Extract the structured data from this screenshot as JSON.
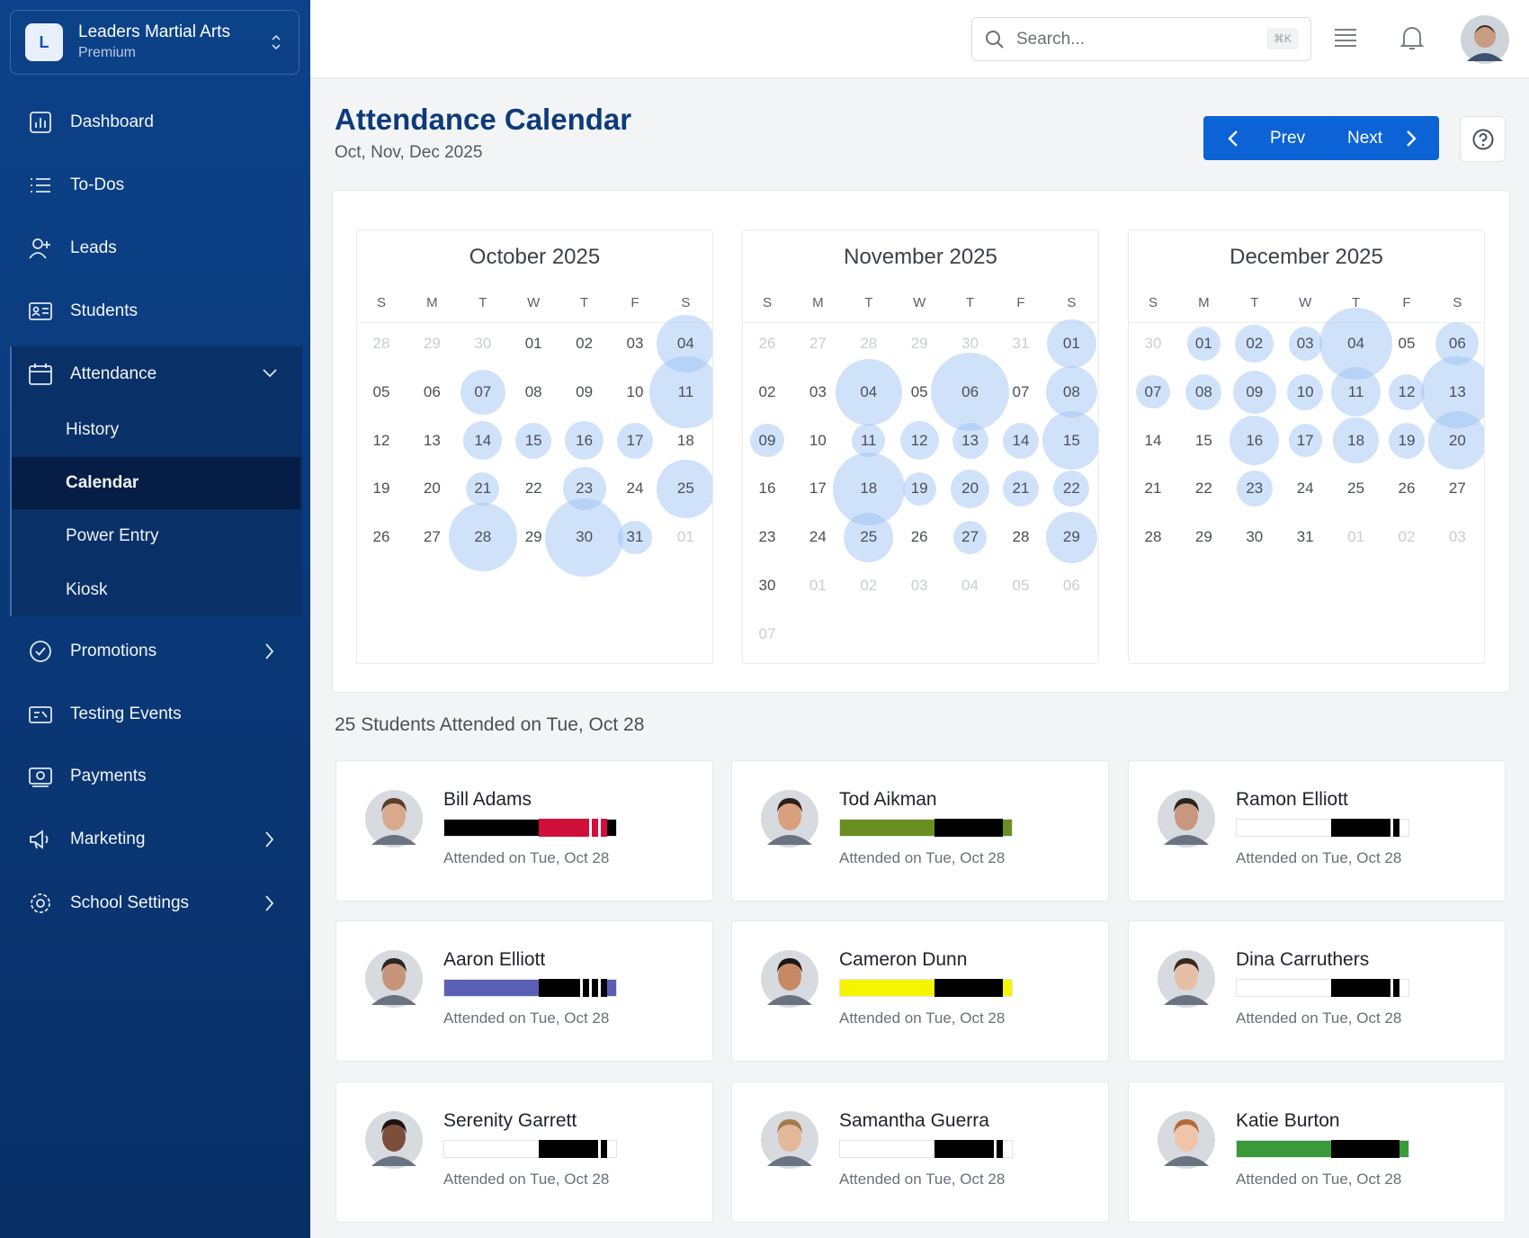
{
  "sidebar": {
    "org": {
      "initial": "L",
      "name": "Leaders Martial Arts",
      "plan": "Premium"
    },
    "nav": [
      "Dashboard",
      "To-Dos",
      "Leads",
      "Students",
      "Attendance",
      "Promotions",
      "Testing Events",
      "Payments",
      "Marketing",
      "School Settings"
    ],
    "subnav": [
      "History",
      "Calendar",
      "Power Entry",
      "Kiosk"
    ]
  },
  "header": {
    "search": "Search...",
    "shortcut": "⌘K"
  },
  "page": {
    "title": "Attendance Calendar",
    "subtitle": "Oct, Nov, Dec 2025",
    "prev": "Prev",
    "next": "Next"
  },
  "calendar": {
    "weekdays": [
      "S",
      "M",
      "T",
      "W",
      "T",
      "F",
      "S"
    ],
    "months": [
      {
        "title": "October 2025",
        "days": [
          "28",
          "29",
          "30",
          "01",
          "02",
          "03",
          "04",
          "05",
          "06",
          "07",
          "08",
          "09",
          "10",
          "11",
          "12",
          "13",
          "14",
          "15",
          "16",
          "17",
          "18",
          "19",
          "20",
          "21",
          "22",
          "23",
          "24",
          "25",
          "26",
          "27",
          "28",
          "29",
          "30",
          "31",
          "01"
        ],
        "counts": [
          null,
          null,
          null,
          null,
          null,
          null,
          18,
          null,
          null,
          11,
          null,
          null,
          null,
          28,
          null,
          null,
          8,
          7,
          8,
          7,
          null,
          null,
          null,
          6,
          null,
          10,
          null,
          18,
          null,
          null,
          25,
          null,
          33,
          6,
          null
        ]
      },
      {
        "title": "November 2025",
        "days": [
          "26",
          "27",
          "28",
          "29",
          "30",
          "31",
          "01",
          "02",
          "03",
          "04",
          "05",
          "06",
          "07",
          "08",
          "09",
          "10",
          "11",
          "12",
          "13",
          "14",
          "15",
          "16",
          "17",
          "18",
          "19",
          "20",
          "21",
          "22",
          "23",
          "24",
          "25",
          "26",
          "27",
          "28",
          "29",
          "30",
          "01",
          "02",
          "03",
          "04",
          "05",
          "06",
          "07"
        ],
        "counts": [
          null,
          null,
          null,
          null,
          null,
          null,
          13,
          null,
          null,
          24,
          null,
          33,
          null,
          14,
          6,
          null,
          6,
          8,
          7,
          7,
          18,
          null,
          null,
          28,
          6,
          8,
          7,
          7,
          null,
          null,
          13,
          null,
          6,
          null,
          14,
          null,
          null,
          null,
          null,
          null,
          null,
          null,
          null
        ]
      },
      {
        "title": "December 2025",
        "days": [
          "30",
          "01",
          "02",
          "03",
          "04",
          "05",
          "06",
          "07",
          "08",
          "09",
          "10",
          "11",
          "12",
          "13",
          "14",
          "15",
          "16",
          "17",
          "18",
          "19",
          "20",
          "21",
          "22",
          "23",
          "24",
          "25",
          "26",
          "27",
          "28",
          "29",
          "30",
          "31",
          "01",
          "02",
          "03"
        ],
        "counts": [
          null,
          6,
          8,
          6,
          28,
          null,
          10,
          6,
          7,
          10,
          7,
          13,
          7,
          28,
          null,
          null,
          13,
          6,
          11,
          7,
          18,
          null,
          null,
          7,
          null,
          null,
          null,
          null,
          null,
          null,
          null,
          null,
          null,
          null,
          null
        ]
      }
    ]
  },
  "attendance": {
    "heading": "25 Students Attended on Tue, Oct 28",
    "students": [
      {
        "name": "Bill Adams",
        "attended": "Attended on Tue, Oct 28",
        "belt": {
          "base": "#000000",
          "panel": "#d0103a",
          "stripes": 2
        }
      },
      {
        "name": "Tod Aikman",
        "attended": "Attended on Tue, Oct 28",
        "belt": {
          "base": "#6b8e23",
          "panel": "#000000",
          "stripes": 0
        }
      },
      {
        "name": "Ramon Elliott",
        "attended": "Attended on Tue, Oct 28",
        "belt": {
          "base": "#ffffff",
          "panel": "#000000",
          "stripes": 1
        }
      },
      {
        "name": "Aaron Elliott",
        "attended": "Attended on Tue, Oct 28",
        "belt": {
          "base": "#5b5fb3",
          "panel": "#000000",
          "stripes": 3
        }
      },
      {
        "name": "Cameron Dunn",
        "attended": "Attended on Tue, Oct 28",
        "belt": {
          "base": "#f5f500",
          "panel": "#000000",
          "stripes": 0
        }
      },
      {
        "name": "Dina Carruthers",
        "attended": "Attended on Tue, Oct 28",
        "belt": {
          "base": "#ffffff",
          "panel": "#000000",
          "stripes": 1
        }
      },
      {
        "name": "Serenity Garrett",
        "attended": "Attended on Tue, Oct 28",
        "belt": {
          "base": "#ffffff",
          "panel": "#000000",
          "stripes": 1
        }
      },
      {
        "name": "Samantha Guerra",
        "attended": "Attended on Tue, Oct 28",
        "belt": {
          "base": "#ffffff",
          "panel": "#000000",
          "stripes": 1
        }
      },
      {
        "name": "Katie Burton",
        "attended": "Attended on Tue, Oct 28",
        "belt": {
          "base": "#3a9a3a",
          "panel": "#000000",
          "stripes": 0
        }
      }
    ]
  }
}
